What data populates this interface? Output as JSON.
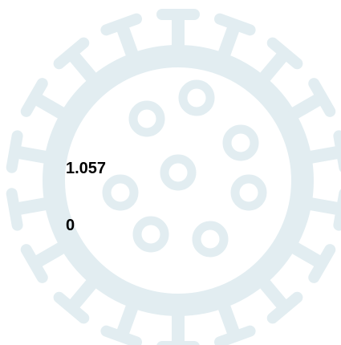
{
  "items": [
    "1.057",
    "0"
  ]
}
